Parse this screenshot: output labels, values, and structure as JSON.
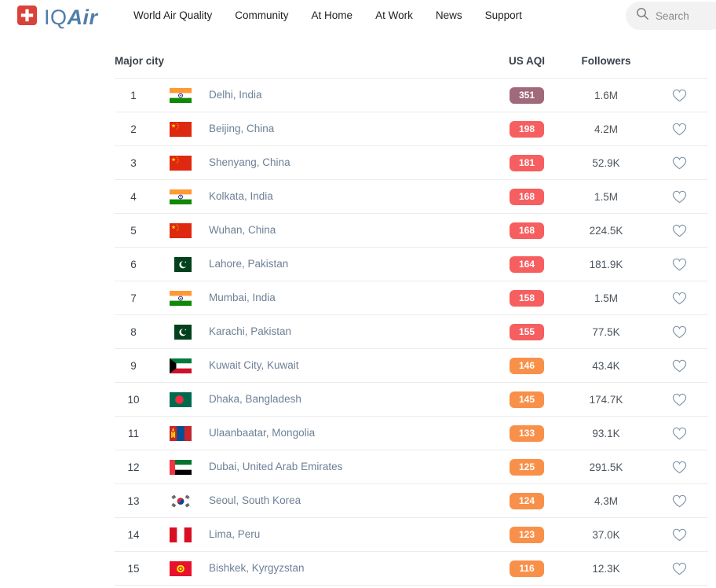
{
  "header": {
    "logo": {
      "iq": "IQ",
      "air": "Air",
      "brand_blue": "#4f7ea9",
      "brand_red": "#d8423a"
    },
    "nav": [
      {
        "label": "World Air Quality"
      },
      {
        "label": "Community"
      },
      {
        "label": "At Home"
      },
      {
        "label": "At Work"
      },
      {
        "label": "News"
      },
      {
        "label": "Support"
      }
    ],
    "search": {
      "placeholder": "Search"
    }
  },
  "table": {
    "columns": {
      "city": "Major city",
      "aqi": "US AQI",
      "followers": "Followers"
    },
    "aqi_colors": {
      "hazardous": "#a06a7b",
      "unhealthy": "#f65e5f",
      "unhealthy_sensitive": "#f99049"
    },
    "rows": [
      {
        "rank": 1,
        "flag": "in",
        "flag_icon": "india-flag-icon",
        "city": "Delhi, India",
        "aqi": 351,
        "aqi_level": "hazardous",
        "followers": "1.6M"
      },
      {
        "rank": 2,
        "flag": "cn",
        "flag_icon": "china-flag-icon",
        "city": "Beijing, China",
        "aqi": 198,
        "aqi_level": "unhealthy",
        "followers": "4.2M"
      },
      {
        "rank": 3,
        "flag": "cn",
        "flag_icon": "china-flag-icon",
        "city": "Shenyang, China",
        "aqi": 181,
        "aqi_level": "unhealthy",
        "followers": "52.9K"
      },
      {
        "rank": 4,
        "flag": "in",
        "flag_icon": "india-flag-icon",
        "city": "Kolkata, India",
        "aqi": 168,
        "aqi_level": "unhealthy",
        "followers": "1.5M"
      },
      {
        "rank": 5,
        "flag": "cn",
        "flag_icon": "china-flag-icon",
        "city": "Wuhan, China",
        "aqi": 168,
        "aqi_level": "unhealthy",
        "followers": "224.5K"
      },
      {
        "rank": 6,
        "flag": "pk",
        "flag_icon": "pakistan-flag-icon",
        "city": "Lahore, Pakistan",
        "aqi": 164,
        "aqi_level": "unhealthy",
        "followers": "181.9K"
      },
      {
        "rank": 7,
        "flag": "in",
        "flag_icon": "india-flag-icon",
        "city": "Mumbai, India",
        "aqi": 158,
        "aqi_level": "unhealthy",
        "followers": "1.5M"
      },
      {
        "rank": 8,
        "flag": "pk",
        "flag_icon": "pakistan-flag-icon",
        "city": "Karachi, Pakistan",
        "aqi": 155,
        "aqi_level": "unhealthy",
        "followers": "77.5K"
      },
      {
        "rank": 9,
        "flag": "kw",
        "flag_icon": "kuwait-flag-icon",
        "city": "Kuwait City, Kuwait",
        "aqi": 146,
        "aqi_level": "unhealthy_sensitive",
        "followers": "43.4K"
      },
      {
        "rank": 10,
        "flag": "bd",
        "flag_icon": "bangladesh-flag-icon",
        "city": "Dhaka, Bangladesh",
        "aqi": 145,
        "aqi_level": "unhealthy_sensitive",
        "followers": "174.7K"
      },
      {
        "rank": 11,
        "flag": "mn",
        "flag_icon": "mongolia-flag-icon",
        "city": "Ulaanbaatar, Mongolia",
        "aqi": 133,
        "aqi_level": "unhealthy_sensitive",
        "followers": "93.1K"
      },
      {
        "rank": 12,
        "flag": "ae",
        "flag_icon": "uae-flag-icon",
        "city": "Dubai, United Arab Emirates",
        "aqi": 125,
        "aqi_level": "unhealthy_sensitive",
        "followers": "291.5K"
      },
      {
        "rank": 13,
        "flag": "kr",
        "flag_icon": "south-korea-flag-icon",
        "city": "Seoul, South Korea",
        "aqi": 124,
        "aqi_level": "unhealthy_sensitive",
        "followers": "4.3M"
      },
      {
        "rank": 14,
        "flag": "pe",
        "flag_icon": "peru-flag-icon",
        "city": "Lima, Peru",
        "aqi": 123,
        "aqi_level": "unhealthy_sensitive",
        "followers": "37.0K"
      },
      {
        "rank": 15,
        "flag": "kg",
        "flag_icon": "kyrgyzstan-flag-icon",
        "city": "Bishkek, Kyrgyzstan",
        "aqi": 116,
        "aqi_level": "unhealthy_sensitive",
        "followers": "12.3K"
      }
    ]
  }
}
